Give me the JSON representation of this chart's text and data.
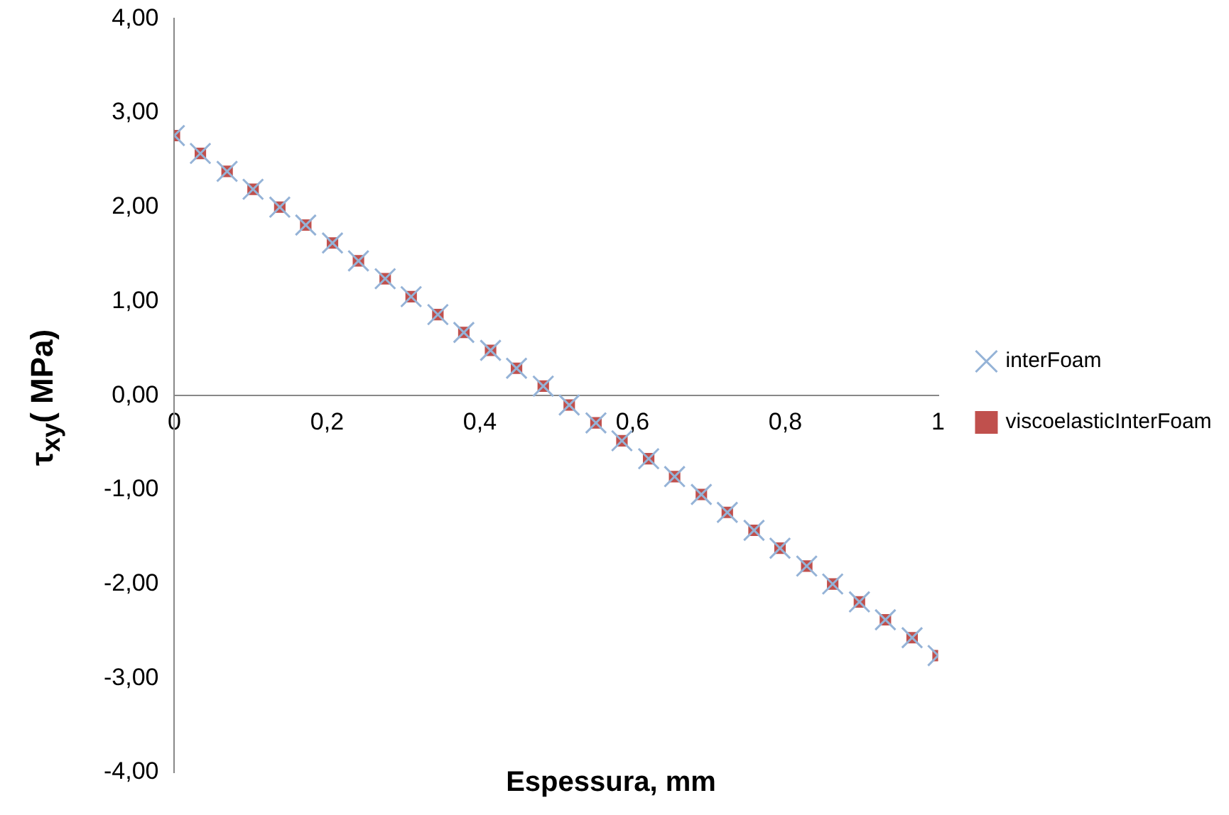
{
  "chart_data": {
    "type": "scatter",
    "xlabel": "Espessura, mm",
    "ylabel": "τ$_{xy}$( MPa)",
    "x": [
      0,
      0.034,
      0.069,
      0.103,
      0.138,
      0.172,
      0.207,
      0.241,
      0.276,
      0.31,
      0.345,
      0.379,
      0.414,
      0.448,
      0.483,
      0.517,
      0.552,
      0.586,
      0.621,
      0.655,
      0.69,
      0.724,
      0.759,
      0.793,
      0.828,
      0.862,
      0.897,
      0.931,
      0.966,
      1
    ],
    "series": [
      {
        "name": "interFoam",
        "color": "#95b3d7",
        "marker": "cross",
        "values": [
          2.76,
          2.57,
          2.38,
          2.19,
          2.0,
          1.81,
          1.62,
          1.43,
          1.24,
          1.05,
          0.86,
          0.67,
          0.48,
          0.29,
          0.1,
          -0.1,
          -0.29,
          -0.48,
          -0.67,
          -0.86,
          -1.05,
          -1.24,
          -1.43,
          -1.62,
          -1.81,
          -2.0,
          -2.19,
          -2.38,
          -2.57,
          -2.76
        ]
      },
      {
        "name": "viscoelasticInterFoam",
        "color": "#c0504d",
        "marker": "square",
        "values": [
          2.76,
          2.57,
          2.38,
          2.19,
          2.0,
          1.81,
          1.62,
          1.43,
          1.24,
          1.05,
          0.86,
          0.67,
          0.48,
          0.29,
          0.1,
          -0.1,
          -0.29,
          -0.48,
          -0.67,
          -0.86,
          -1.05,
          -1.24,
          -1.43,
          -1.62,
          -1.81,
          -2.0,
          -2.19,
          -2.38,
          -2.57,
          -2.76
        ]
      }
    ],
    "xlim": [
      0,
      1
    ],
    "xticks": [
      0,
      {
        "value": 0.2,
        "label": "0,2"
      },
      {
        "value": 0.4,
        "label": "0,4"
      },
      {
        "value": 0.6,
        "label": "0,6"
      },
      {
        "value": 0.8,
        "label": "0,8"
      },
      1
    ],
    "ylim": [
      -4,
      4
    ],
    "yticks": [
      {
        "value": -4,
        "label": "-4,00"
      },
      {
        "value": -3,
        "label": "-3,00"
      },
      {
        "value": -2,
        "label": "-2,00"
      },
      {
        "value": -1,
        "label": "-1,00"
      },
      {
        "value": 0,
        "label": "0,00"
      },
      {
        "value": 1,
        "label": "1,00"
      },
      {
        "value": 2,
        "label": "2,00"
      },
      {
        "value": 3,
        "label": "3,00"
      },
      {
        "value": 4,
        "label": "4,00"
      }
    ],
    "grid": false,
    "legend": "right"
  }
}
